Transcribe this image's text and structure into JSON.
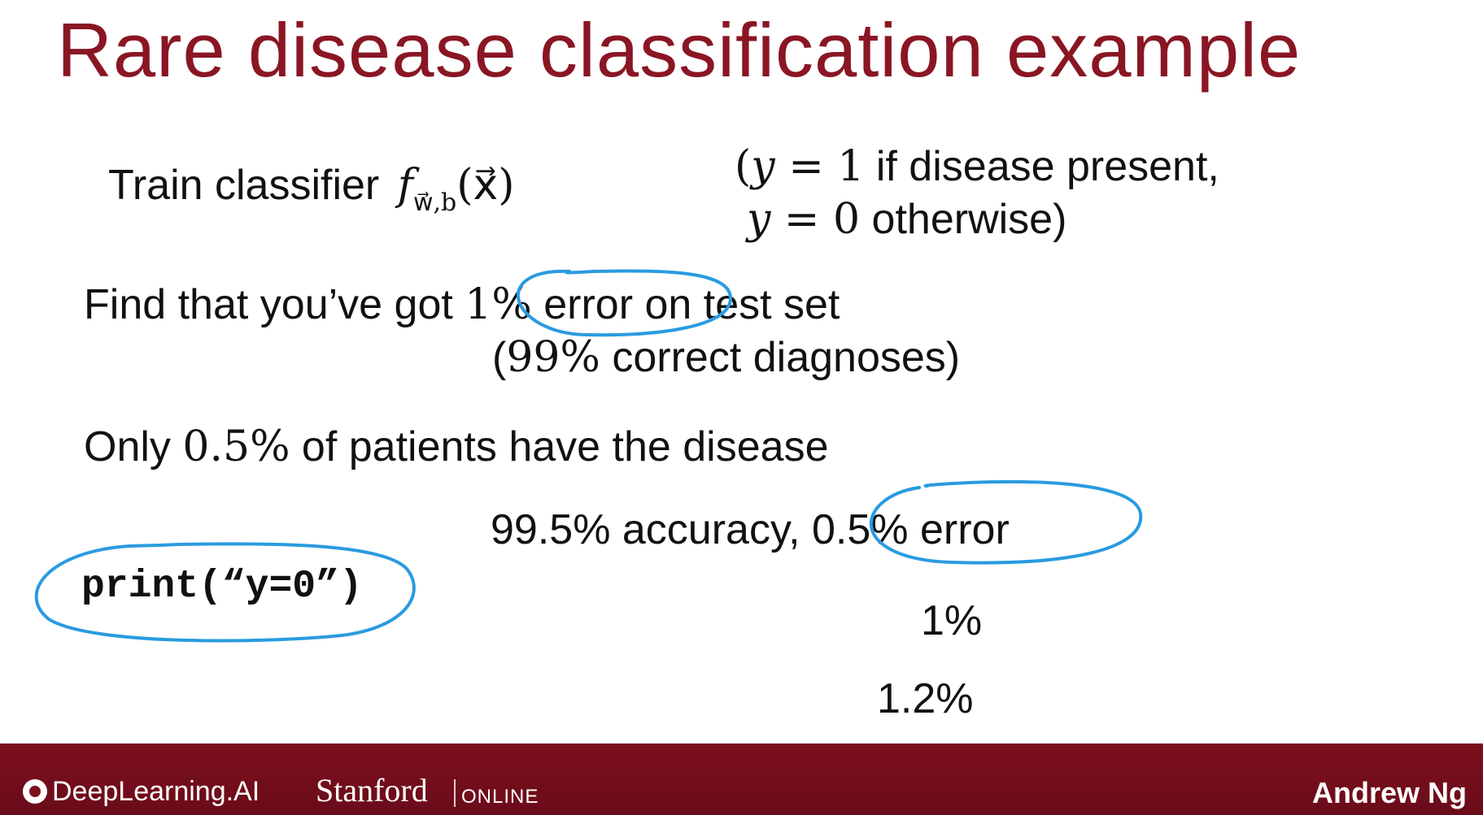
{
  "slide": {
    "title": "Rare disease classification example"
  },
  "line1": {
    "text": "Train classifier",
    "func": "f",
    "func_sub": "w⃗,b",
    "func_arg": "(x⃗)"
  },
  "label_def": {
    "line_a_open": "(",
    "line_a_var": "y",
    "line_a_eq": " = 1",
    "line_a_rest": " if disease present,",
    "line_b_var": "y",
    "line_b_eq": " = 0",
    "line_b_rest": " otherwise)"
  },
  "line2": {
    "before": "Find that you’ve got ",
    "pct": "1%",
    "after": " error on test set"
  },
  "line3": {
    "open": "(",
    "pct": "99%",
    "rest": " correct diagnoses)"
  },
  "line4": {
    "before": "Only ",
    "pct": "0.5%",
    "after": " of patients have the disease"
  },
  "line5": {
    "text": "99.5% accuracy, 0.5% error"
  },
  "code": {
    "text": "print(“y=0”)"
  },
  "extra": {
    "value_a": "1%",
    "value_b": "1.2%"
  },
  "footer": {
    "brand": "DeepLearning.AI",
    "university": "Stanford",
    "online": "ONLINE",
    "author": "Andrew Ng"
  },
  "colors": {
    "title": "#8a1624",
    "footer": "#7d0f1e",
    "annotation": "#2a9be0"
  }
}
